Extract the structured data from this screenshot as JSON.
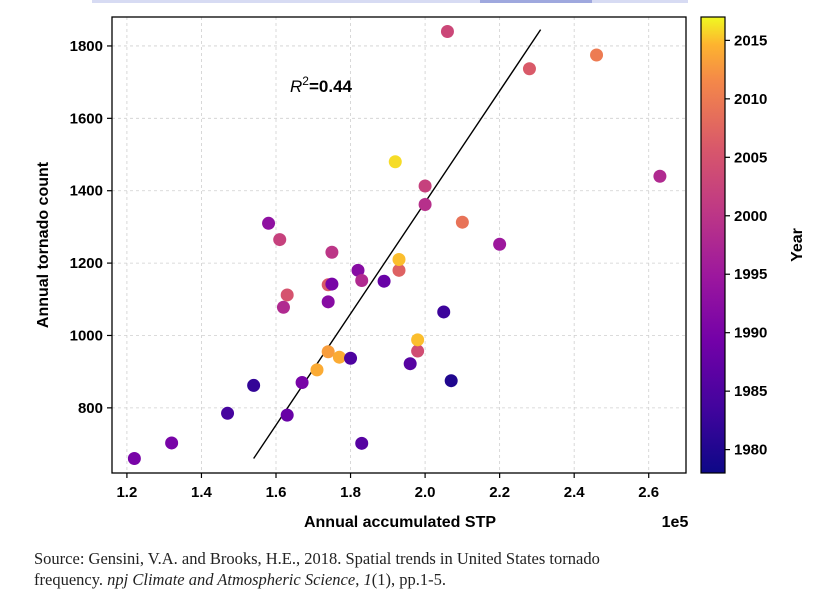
{
  "chart_data": {
    "type": "scatter",
    "title": "",
    "xlabel": "Annual accumulated STP",
    "ylabel": "Annual tornado count",
    "x_multiplier_label": "1e5",
    "xlim": [
      1.16,
      2.7
    ],
    "ylim": [
      620,
      1880
    ],
    "xticks": [
      1.2,
      1.4,
      1.6,
      1.8,
      2.0,
      2.2,
      2.4,
      2.6
    ],
    "xtick_labels": [
      "1.2",
      "1.4",
      "1.6",
      "1.8",
      "2.0",
      "2.2",
      "2.4",
      "2.6"
    ],
    "yticks": [
      800,
      1000,
      1200,
      1400,
      1600,
      1800
    ],
    "ytick_labels": [
      "800",
      "1000",
      "1200",
      "1400",
      "1600",
      "1800"
    ],
    "grid": true,
    "annotation": {
      "r2_prefix": "R",
      "r2_exponent": "2",
      "r2_value": "=0.44"
    },
    "trendline": {
      "x": [
        1.54,
        2.31
      ],
      "y": [
        660,
        1845
      ]
    },
    "colorbar": {
      "label": "Year",
      "min": 1978,
      "max": 2017,
      "ticks": [
        1980,
        1985,
        1990,
        1995,
        2000,
        2005,
        2010,
        2015
      ],
      "tick_labels": [
        "1980",
        "1985",
        "1990",
        "1995",
        "2000",
        "2005",
        "2010",
        "2015"
      ]
    },
    "points": [
      {
        "x": 1.22,
        "y": 660,
        "year": 1990
      },
      {
        "x": 1.32,
        "y": 703,
        "year": 1990
      },
      {
        "x": 1.47,
        "y": 785,
        "year": 1984
      },
      {
        "x": 1.54,
        "y": 862,
        "year": 1982
      },
      {
        "x": 1.58,
        "y": 1310,
        "year": 1993
      },
      {
        "x": 1.61,
        "y": 1265,
        "year": 2002
      },
      {
        "x": 1.62,
        "y": 1078,
        "year": 1998
      },
      {
        "x": 1.63,
        "y": 1112,
        "year": 2005
      },
      {
        "x": 1.63,
        "y": 780,
        "year": 1988
      },
      {
        "x": 1.67,
        "y": 870,
        "year": 1990
      },
      {
        "x": 1.71,
        "y": 905,
        "year": 2014
      },
      {
        "x": 1.74,
        "y": 955,
        "year": 2013
      },
      {
        "x": 1.74,
        "y": 1140,
        "year": 2006
      },
      {
        "x": 1.74,
        "y": 1093,
        "year": 1992
      },
      {
        "x": 1.75,
        "y": 1230,
        "year": 2000
      },
      {
        "x": 1.75,
        "y": 1142,
        "year": 1990
      },
      {
        "x": 1.77,
        "y": 940,
        "year": 2014
      },
      {
        "x": 1.8,
        "y": 937,
        "year": 1985
      },
      {
        "x": 1.82,
        "y": 1180,
        "year": 1992
      },
      {
        "x": 1.83,
        "y": 1152,
        "year": 1998
      },
      {
        "x": 1.83,
        "y": 702,
        "year": 1986
      },
      {
        "x": 1.89,
        "y": 1150,
        "year": 1988
      },
      {
        "x": 1.92,
        "y": 1480,
        "year": 2016
      },
      {
        "x": 1.93,
        "y": 1180,
        "year": 2007
      },
      {
        "x": 1.93,
        "y": 1210,
        "year": 2015
      },
      {
        "x": 1.96,
        "y": 922,
        "year": 1986
      },
      {
        "x": 1.98,
        "y": 957,
        "year": 2004
      },
      {
        "x": 1.98,
        "y": 988,
        "year": 2015
      },
      {
        "x": 2.0,
        "y": 1413,
        "year": 2002
      },
      {
        "x": 2.0,
        "y": 1362,
        "year": 1999
      },
      {
        "x": 2.05,
        "y": 1065,
        "year": 1983
      },
      {
        "x": 2.06,
        "y": 1840,
        "year": 2003
      },
      {
        "x": 2.07,
        "y": 875,
        "year": 1980
      },
      {
        "x": 2.1,
        "y": 1313,
        "year": 2009
      },
      {
        "x": 2.2,
        "y": 1252,
        "year": 1995
      },
      {
        "x": 2.28,
        "y": 1737,
        "year": 2006
      },
      {
        "x": 2.46,
        "y": 1775,
        "year": 2010
      },
      {
        "x": 2.63,
        "y": 1440,
        "year": 1998
      }
    ]
  },
  "caption": {
    "line1": "Source: Gensini, V.A. and Brooks, H.E., 2018. Spatial trends in United States tornado",
    "line2_a": "frequency. ",
    "line2_journal": "npj Climate and Atmospheric Science",
    "line2_b": ", ",
    "line2_volume": "1",
    "line2_c": "(1), pp.1-5."
  }
}
